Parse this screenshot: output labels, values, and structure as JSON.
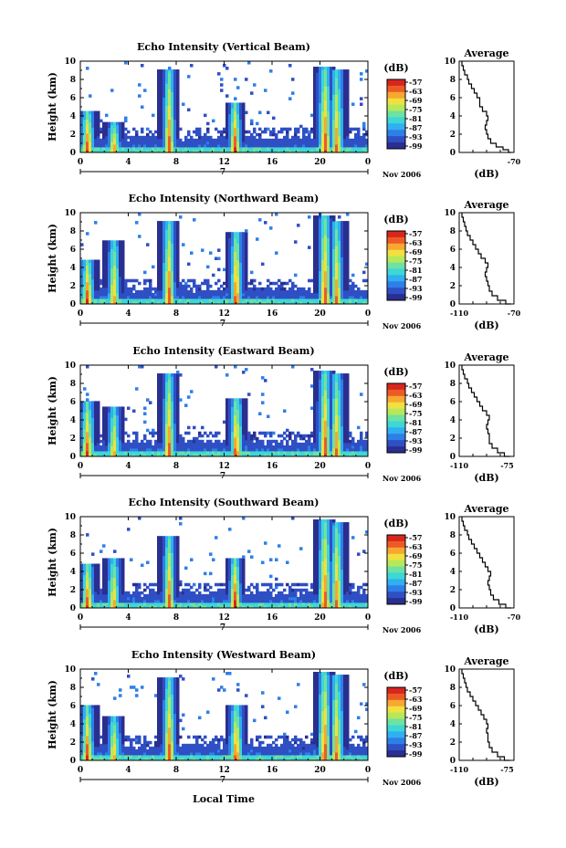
{
  "colors": {
    "scale": [
      "#2a2e8f",
      "#2f4fc4",
      "#2f7fe8",
      "#2fb0f0",
      "#3ed6d6",
      "#6ee2a0",
      "#b6e85a",
      "#f0e040",
      "#f6a830",
      "#ee5a26",
      "#d8261e"
    ],
    "background": "#ffffff",
    "axis": "#000000"
  },
  "shared_labels": {
    "ylabel": "Height (km)",
    "date_label": "Nov 2006",
    "day_marker": "7",
    "xlabel": "Local Time",
    "colorbar_unit": "(dB)",
    "avg_title": "Average",
    "avg_xlabel": "(dB)"
  },
  "chart_data": [
    {
      "type": "heatmap",
      "title": "Echo Intensity (Vertical Beam)",
      "x_ticks": [
        "0",
        "4",
        "8",
        "12",
        "16",
        "20",
        "0"
      ],
      "y_ticks": [
        "0",
        "2",
        "4",
        "6",
        "8",
        "10"
      ],
      "xlim": [
        0,
        24
      ],
      "ylim": [
        0,
        10
      ],
      "colorbar_ticks": [
        "-57",
        "-63",
        "-69",
        "-75",
        "-81",
        "-87",
        "-93",
        "-99"
      ],
      "rain_events": [
        {
          "t": 0.6,
          "top": 4.5,
          "strength": 1.0
        },
        {
          "t": 2.8,
          "top": 3.2,
          "strength": 0.9
        },
        {
          "t": 7.4,
          "top": 9.0,
          "strength": 0.95
        },
        {
          "t": 12.9,
          "top": 5.5,
          "strength": 1.0
        },
        {
          "t": 20.4,
          "top": 9.5,
          "strength": 1.0
        },
        {
          "t": 21.4,
          "top": 9.0,
          "strength": 0.9
        }
      ],
      "average": {
        "title": "Average",
        "xlabel": "(dB)",
        "x_ticks": [
          "-70"
        ],
        "y_ticks": [
          "0",
          "2",
          "4",
          "6",
          "8",
          "10"
        ],
        "xlim": [
          -110,
          -70
        ],
        "ylim": [
          0,
          10
        ],
        "profile": [
          [
            -72,
            0
          ],
          [
            -74,
            0.3
          ],
          [
            -78,
            0.6
          ],
          [
            -83,
            1.0
          ],
          [
            -87,
            1.5
          ],
          [
            -89,
            2.0
          ],
          [
            -90,
            2.5
          ],
          [
            -91,
            3.0
          ],
          [
            -90,
            3.5
          ],
          [
            -89,
            4.0
          ],
          [
            -90,
            4.5
          ],
          [
            -93,
            5.0
          ],
          [
            -95,
            5.5
          ],
          [
            -95,
            6.0
          ],
          [
            -97,
            6.5
          ],
          [
            -99,
            7.0
          ],
          [
            -101,
            7.5
          ],
          [
            -103,
            8.0
          ],
          [
            -104,
            8.5
          ],
          [
            -106,
            9.0
          ],
          [
            -107,
            9.5
          ],
          [
            -108,
            10
          ]
        ]
      }
    },
    {
      "type": "heatmap",
      "title": "Echo Intensity (Northward Beam)",
      "x_ticks": [
        "0",
        "4",
        "8",
        "12",
        "16",
        "20",
        "0"
      ],
      "y_ticks": [
        "0",
        "2",
        "4",
        "6",
        "8",
        "10"
      ],
      "xlim": [
        0,
        24
      ],
      "ylim": [
        0,
        10
      ],
      "colorbar_ticks": [
        "-57",
        "-63",
        "-69",
        "-75",
        "-81",
        "-87",
        "-93",
        "-99"
      ],
      "rain_events": [
        {
          "t": 0.6,
          "top": 5.0,
          "strength": 1.0
        },
        {
          "t": 2.8,
          "top": 7.0,
          "strength": 0.85
        },
        {
          "t": 7.4,
          "top": 9.0,
          "strength": 0.95
        },
        {
          "t": 13.0,
          "top": 8.0,
          "strength": 1.0
        },
        {
          "t": 20.4,
          "top": 9.8,
          "strength": 1.0
        },
        {
          "t": 21.4,
          "top": 9.0,
          "strength": 0.9
        }
      ],
      "average": {
        "title": "Average",
        "xlabel": "(dB)",
        "x_ticks": [
          "-110",
          "-70"
        ],
        "y_ticks": [
          "0",
          "2",
          "4",
          "6",
          "8",
          "10"
        ],
        "xlim": [
          -110,
          -70
        ],
        "ylim": [
          0,
          10
        ],
        "profile": [
          [
            -72,
            0
          ],
          [
            -76,
            0.4
          ],
          [
            -82,
            0.9
          ],
          [
            -86,
            1.4
          ],
          [
            -88,
            2.0
          ],
          [
            -89,
            2.5
          ],
          [
            -90,
            3.0
          ],
          [
            -91,
            3.5
          ],
          [
            -90,
            4.0
          ],
          [
            -89,
            4.5
          ],
          [
            -91,
            5.0
          ],
          [
            -94,
            5.5
          ],
          [
            -96,
            6.0
          ],
          [
            -98,
            6.5
          ],
          [
            -100,
            7.0
          ],
          [
            -102,
            7.5
          ],
          [
            -104,
            8.0
          ],
          [
            -105,
            8.5
          ],
          [
            -106,
            9.0
          ],
          [
            -107,
            9.5
          ],
          [
            -108,
            10
          ]
        ]
      }
    },
    {
      "type": "heatmap",
      "title": "Echo Intensity (Eastward Beam)",
      "x_ticks": [
        "0",
        "4",
        "8",
        "12",
        "16",
        "20",
        "0"
      ],
      "y_ticks": [
        "0",
        "2",
        "4",
        "6",
        "8",
        "10"
      ],
      "xlim": [
        0,
        24
      ],
      "ylim": [
        0,
        10
      ],
      "colorbar_ticks": [
        "-57",
        "-63",
        "-69",
        "-75",
        "-81",
        "-87",
        "-93",
        "-99"
      ],
      "rain_events": [
        {
          "t": 0.6,
          "top": 6.0,
          "strength": 1.0
        },
        {
          "t": 2.8,
          "top": 5.5,
          "strength": 0.85
        },
        {
          "t": 7.4,
          "top": 9.0,
          "strength": 0.95
        },
        {
          "t": 13.0,
          "top": 6.5,
          "strength": 1.0
        },
        {
          "t": 20.4,
          "top": 9.5,
          "strength": 1.0
        },
        {
          "t": 21.4,
          "top": 9.0,
          "strength": 0.9
        }
      ],
      "average": {
        "title": "Average",
        "xlabel": "(dB)",
        "x_ticks": [
          "-110",
          "-75"
        ],
        "y_ticks": [
          "0",
          "2",
          "4",
          "6",
          "8",
          "10"
        ],
        "xlim": [
          -110,
          -70
        ],
        "ylim": [
          0,
          10
        ],
        "profile": [
          [
            -73,
            0
          ],
          [
            -77,
            0.4
          ],
          [
            -82,
            0.9
          ],
          [
            -86,
            1.4
          ],
          [
            -88,
            2.0
          ],
          [
            -88,
            2.5
          ],
          [
            -89,
            3.0
          ],
          [
            -90,
            3.5
          ],
          [
            -89,
            4.0
          ],
          [
            -88,
            4.5
          ],
          [
            -90,
            5.0
          ],
          [
            -93,
            5.5
          ],
          [
            -95,
            6.0
          ],
          [
            -97,
            6.5
          ],
          [
            -99,
            7.0
          ],
          [
            -101,
            7.5
          ],
          [
            -103,
            8.0
          ],
          [
            -104,
            8.5
          ],
          [
            -106,
            9.0
          ],
          [
            -107,
            9.5
          ],
          [
            -108,
            10
          ]
        ]
      }
    },
    {
      "type": "heatmap",
      "title": "Echo Intensity (Southward Beam)",
      "x_ticks": [
        "0",
        "4",
        "8",
        "12",
        "16",
        "20",
        "0"
      ],
      "y_ticks": [
        "0",
        "2",
        "4",
        "6",
        "8",
        "10"
      ],
      "xlim": [
        0,
        24
      ],
      "ylim": [
        0,
        10
      ],
      "colorbar_ticks": [
        "-57",
        "-63",
        "-69",
        "-75",
        "-81",
        "-87",
        "-93",
        "-99"
      ],
      "rain_events": [
        {
          "t": 0.6,
          "top": 5.0,
          "strength": 1.0
        },
        {
          "t": 2.8,
          "top": 5.5,
          "strength": 0.85
        },
        {
          "t": 7.4,
          "top": 8.0,
          "strength": 0.95
        },
        {
          "t": 12.9,
          "top": 5.5,
          "strength": 1.0
        },
        {
          "t": 20.4,
          "top": 9.8,
          "strength": 1.0
        },
        {
          "t": 21.4,
          "top": 9.5,
          "strength": 0.9
        }
      ],
      "average": {
        "title": "Average",
        "xlabel": "(dB)",
        "x_ticks": [
          "-110",
          "-70"
        ],
        "y_ticks": [
          "0",
          "2",
          "4",
          "6",
          "8",
          "10"
        ],
        "xlim": [
          -110,
          -70
        ],
        "ylim": [
          0,
          10
        ],
        "profile": [
          [
            -72,
            0
          ],
          [
            -76,
            0.4
          ],
          [
            -81,
            0.9
          ],
          [
            -85,
            1.4
          ],
          [
            -87,
            2.0
          ],
          [
            -88,
            2.5
          ],
          [
            -89,
            3.0
          ],
          [
            -88,
            3.5
          ],
          [
            -87,
            4.0
          ],
          [
            -89,
            4.5
          ],
          [
            -91,
            5.0
          ],
          [
            -93,
            5.5
          ],
          [
            -95,
            6.0
          ],
          [
            -97,
            6.5
          ],
          [
            -99,
            7.0
          ],
          [
            -101,
            7.5
          ],
          [
            -103,
            8.0
          ],
          [
            -104,
            8.5
          ],
          [
            -106,
            9.0
          ],
          [
            -107,
            9.5
          ],
          [
            -108,
            10
          ]
        ]
      }
    },
    {
      "type": "heatmap",
      "title": "Echo Intensity (Westward Beam)",
      "x_ticks": [
        "0",
        "4",
        "8",
        "12",
        "16",
        "20",
        "0"
      ],
      "y_ticks": [
        "0",
        "2",
        "4",
        "6",
        "8",
        "10"
      ],
      "xlim": [
        0,
        24
      ],
      "ylim": [
        0,
        10
      ],
      "colorbar_ticks": [
        "-57",
        "-63",
        "-69",
        "-75",
        "-81",
        "-87",
        "-93",
        "-99"
      ],
      "rain_events": [
        {
          "t": 0.6,
          "top": 6.0,
          "strength": 1.0
        },
        {
          "t": 2.8,
          "top": 5.0,
          "strength": 0.85
        },
        {
          "t": 7.4,
          "top": 9.0,
          "strength": 0.95
        },
        {
          "t": 13.0,
          "top": 6.0,
          "strength": 1.0
        },
        {
          "t": 20.4,
          "top": 9.8,
          "strength": 1.0
        },
        {
          "t": 21.4,
          "top": 9.5,
          "strength": 0.9
        }
      ],
      "average": {
        "title": "Average",
        "xlabel": "(dB)",
        "x_ticks": [
          "-110",
          "-75"
        ],
        "y_ticks": [
          "0",
          "2",
          "4",
          "6",
          "8",
          "10"
        ],
        "xlim": [
          -110,
          -70
        ],
        "ylim": [
          0,
          10
        ],
        "profile": [
          [
            -73,
            0
          ],
          [
            -77,
            0.4
          ],
          [
            -82,
            0.9
          ],
          [
            -86,
            1.4
          ],
          [
            -88,
            2.0
          ],
          [
            -89,
            2.5
          ],
          [
            -89,
            3.0
          ],
          [
            -90,
            3.5
          ],
          [
            -89,
            4.0
          ],
          [
            -90,
            4.5
          ],
          [
            -92,
            5.0
          ],
          [
            -94,
            5.5
          ],
          [
            -96,
            6.0
          ],
          [
            -98,
            6.5
          ],
          [
            -100,
            7.0
          ],
          [
            -102,
            7.5
          ],
          [
            -104,
            8.0
          ],
          [
            -105,
            8.5
          ],
          [
            -106,
            9.0
          ],
          [
            -107,
            9.5
          ],
          [
            -108,
            10
          ]
        ]
      }
    }
  ]
}
